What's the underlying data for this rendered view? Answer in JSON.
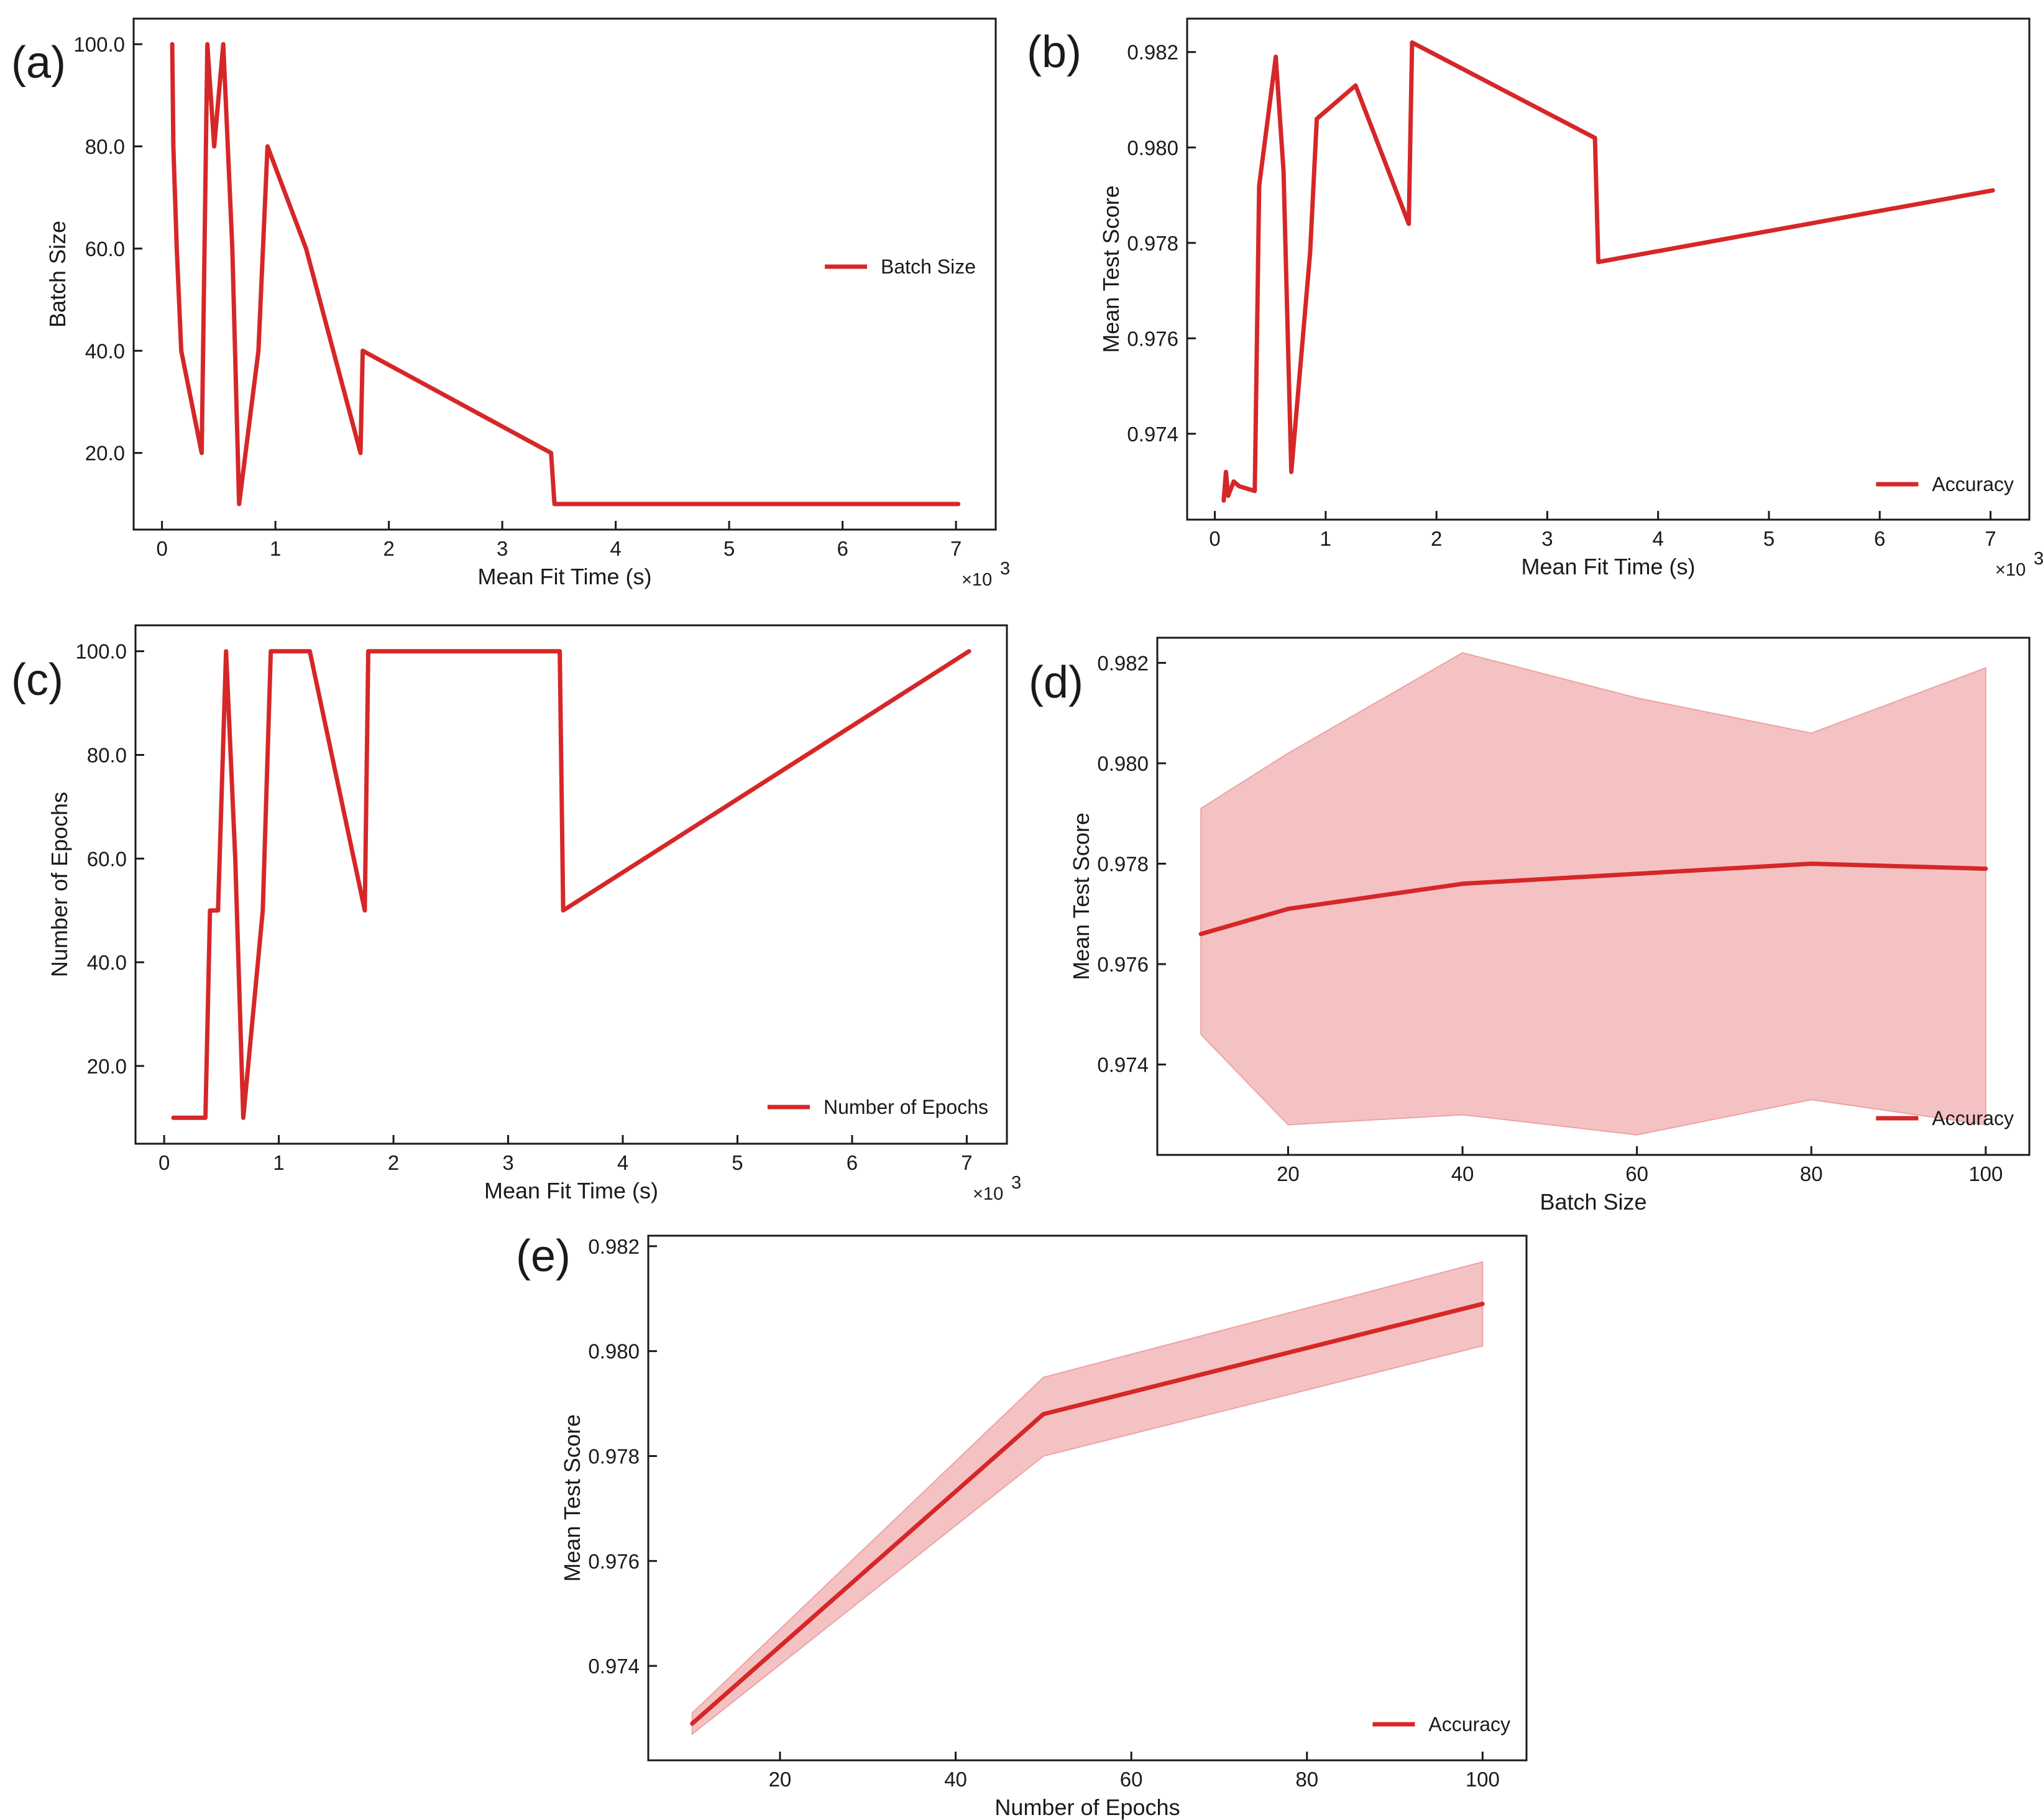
{
  "chart_data": [
    {
      "panel": "(a)",
      "type": "line",
      "xlabel": "Mean Fit Time (s)",
      "ylabel": "Batch Size",
      "x_multiplier_text": "×10",
      "x_multiplier_exp": "3",
      "xlim": [
        -0.25,
        7.35
      ],
      "ylim": [
        5,
        105
      ],
      "xticks": [
        0,
        1,
        2,
        3,
        4,
        5,
        6,
        7
      ],
      "xtick_labels": [
        "0",
        "1",
        "2",
        "3",
        "4",
        "5",
        "6",
        "7"
      ],
      "yticks": [
        20,
        40,
        60,
        80,
        100
      ],
      "ytick_labels": [
        "20.0",
        "40.0",
        "60.0",
        "80.0",
        "100.0"
      ],
      "legend": {
        "label": "Batch Size",
        "position": "center-right"
      },
      "color": "#d62728",
      "series": [
        {
          "name": "Batch Size",
          "x": [
            0.09,
            0.1,
            0.13,
            0.17,
            0.35,
            0.4,
            0.46,
            0.54,
            0.62,
            0.68,
            0.85,
            0.93,
            1.27,
            1.75,
            1.77,
            3.43,
            3.46,
            7.02
          ],
          "y": [
            100,
            80,
            60,
            40,
            20,
            100,
            80,
            100,
            60,
            10,
            40,
            80,
            60,
            20,
            40,
            20,
            10,
            10
          ]
        }
      ]
    },
    {
      "panel": "(b)",
      "type": "line",
      "xlabel": "Mean Fit Time (s)",
      "ylabel": "Mean Test Score",
      "x_multiplier_text": "×10",
      "x_multiplier_exp": "3",
      "xlim": [
        -0.25,
        7.35
      ],
      "ylim": [
        0.9722,
        0.9827
      ],
      "xticks": [
        0,
        1,
        2,
        3,
        4,
        5,
        6,
        7
      ],
      "xtick_labels": [
        "0",
        "1",
        "2",
        "3",
        "4",
        "5",
        "6",
        "7"
      ],
      "yticks": [
        0.974,
        0.976,
        0.978,
        0.98,
        0.982
      ],
      "ytick_labels": [
        "0.974",
        "0.976",
        "0.978",
        "0.980",
        "0.982"
      ],
      "legend": {
        "label": "Accuracy",
        "position": "lower-right"
      },
      "color": "#d62728",
      "series": [
        {
          "name": "Accuracy",
          "x": [
            0.08,
            0.1,
            0.12,
            0.17,
            0.22,
            0.36,
            0.4,
            0.55,
            0.62,
            0.69,
            0.86,
            0.92,
            1.27,
            1.75,
            1.78,
            3.43,
            3.46,
            7.02
          ],
          "y": [
            0.9726,
            0.9732,
            0.9727,
            0.973,
            0.9729,
            0.9728,
            0.9792,
            0.9819,
            0.9795,
            0.9732,
            0.9778,
            0.9806,
            0.9813,
            0.9784,
            0.9822,
            0.9802,
            0.9776,
            0.9791
          ]
        }
      ]
    },
    {
      "panel": "(c)",
      "type": "line",
      "xlabel": "Mean Fit Time (s)",
      "ylabel": "Number of Epochs",
      "x_multiplier_text": "×10",
      "x_multiplier_exp": "3",
      "xlim": [
        -0.25,
        7.35
      ],
      "ylim": [
        5,
        105
      ],
      "xticks": [
        0,
        1,
        2,
        3,
        4,
        5,
        6,
        7
      ],
      "xtick_labels": [
        "0",
        "1",
        "2",
        "3",
        "4",
        "5",
        "6",
        "7"
      ],
      "yticks": [
        20,
        40,
        60,
        80,
        100
      ],
      "ytick_labels": [
        "20.0",
        "40.0",
        "60.0",
        "80.0",
        "100.0"
      ],
      "legend": {
        "label": "Number of Epochs",
        "position": "lower-right"
      },
      "color": "#d62728",
      "series": [
        {
          "name": "Number of Epochs",
          "x": [
            0.08,
            0.36,
            0.4,
            0.47,
            0.54,
            0.62,
            0.69,
            0.86,
            0.93,
            1.27,
            1.75,
            1.78,
            3.45,
            3.48,
            7.02
          ],
          "y": [
            10,
            10,
            50,
            50,
            100,
            60,
            10,
            50,
            100,
            100,
            50,
            100,
            100,
            50,
            100
          ]
        }
      ]
    },
    {
      "panel": "(d)",
      "type": "area",
      "xlabel": "Batch Size",
      "ylabel": "Mean Test Score",
      "xlim": [
        5,
        105
      ],
      "ylim": [
        0.9722,
        0.9825
      ],
      "xticks": [
        20,
        40,
        60,
        80,
        100
      ],
      "xtick_labels": [
        "20",
        "40",
        "60",
        "80",
        "100"
      ],
      "yticks": [
        0.974,
        0.976,
        0.978,
        0.98,
        0.982
      ],
      "ytick_labels": [
        "0.974",
        "0.976",
        "0.978",
        "0.980",
        "0.982"
      ],
      "legend": {
        "label": "Accuracy",
        "position": "lower-right"
      },
      "color": "#d62728",
      "band_color": "#f5c2c3",
      "series": [
        {
          "name": "Accuracy",
          "x": [
            10,
            20,
            40,
            60,
            80,
            100
          ],
          "y": [
            0.9766,
            0.9771,
            0.9776,
            0.9778,
            0.978,
            0.9779
          ],
          "upper": [
            0.9791,
            0.9802,
            0.9822,
            0.9813,
            0.9806,
            0.9819
          ],
          "lower": [
            0.9746,
            0.9728,
            0.973,
            0.9726,
            0.9733,
            0.9728
          ]
        }
      ]
    },
    {
      "panel": "(e)",
      "type": "area",
      "xlabel": "Number of Epochs",
      "ylabel": "Mean Test Score",
      "xlim": [
        5,
        105
      ],
      "ylim": [
        0.9722,
        0.9822
      ],
      "xticks": [
        20,
        40,
        60,
        80,
        100
      ],
      "xtick_labels": [
        "20",
        "40",
        "60",
        "80",
        "100"
      ],
      "yticks": [
        0.974,
        0.976,
        0.978,
        0.98,
        0.982
      ],
      "ytick_labels": [
        "0.974",
        "0.976",
        "0.978",
        "0.980",
        "0.982"
      ],
      "legend": {
        "label": "Accuracy",
        "position": "lower-right"
      },
      "color": "#d62728",
      "band_color": "#f5c2c3",
      "series": [
        {
          "name": "Accuracy",
          "x": [
            10,
            50,
            100
          ],
          "y": [
            0.9729,
            0.9788,
            0.9809
          ],
          "upper": [
            0.9731,
            0.9795,
            0.9817
          ],
          "lower": [
            0.9727,
            0.978,
            0.9801
          ]
        }
      ]
    }
  ]
}
